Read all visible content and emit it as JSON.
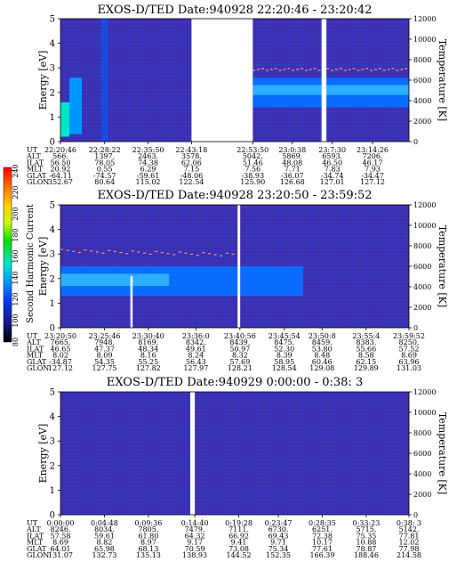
{
  "colorbar": {
    "label": "Second Harmonic Current",
    "ticks": [
      "240",
      "220",
      "200",
      "180",
      "160",
      "140",
      "120",
      "100",
      "80"
    ],
    "colors": [
      "#ff0000",
      "#ff7a00",
      "#ffd200",
      "#c8ff00",
      "#00e000",
      "#00e6c8",
      "#0096ff",
      "#003cff",
      "#1a1a8c",
      "#000000"
    ]
  },
  "chart_data": [
    {
      "type": "heatmap",
      "title": "EXOS-D/TED   Date:940928  22:20:46 - 23:20:42",
      "ylabel": "Energy [eV]",
      "y2label": "Temperature [K]",
      "yticks": [
        "0",
        "1",
        "2",
        "3",
        "4",
        "5"
      ],
      "y2ticks": [
        "0",
        "2000",
        "4000",
        "6000",
        "8000",
        "10000",
        "12000"
      ],
      "ylim": [
        0,
        5
      ],
      "y2lim": [
        0,
        12000
      ],
      "gaps_ut": [
        [
          "22:43:18",
          "22:53:50"
        ],
        [
          "23:05:40",
          "23:06:30"
        ]
      ],
      "temperature_trace": [
        [
          "22:53:50",
          7000
        ],
        [
          "23:20:42",
          7000
        ]
      ],
      "rows": [
        {
          "label": "UT",
          "values": [
            "22:20:46",
            "22:28:22",
            "22:35:50",
            "22:43:18",
            "22:53:50",
            "23:0:38",
            "23:7:30",
            "23:14:26"
          ]
        },
        {
          "label": "ALT",
          "values": [
            "566.",
            "1397.",
            "2463.",
            "3578.",
            "5042.",
            "5869.",
            "6593.",
            "7206."
          ]
        },
        {
          "label": "ILAT",
          "values": [
            "56.50",
            "78.05",
            "74.38",
            "62.06",
            "51.46",
            "48.08",
            "46.50",
            "46.17"
          ]
        },
        {
          "label": "MLT",
          "values": [
            "20.92",
            "0.55",
            "6.29",
            "7.15",
            "7.56",
            "7.71",
            "7.83",
            "7.93"
          ]
        },
        {
          "label": "GLAT",
          "values": [
            "-64.11",
            "-74.57",
            "-59.61",
            "-48.06",
            "-38.93",
            "-36.07",
            "-34.74",
            "-34.47"
          ]
        },
        {
          "label": "GLON",
          "values": [
            "352.67",
            "80.64",
            "115.02",
            "122.54",
            "125.90",
            "126.68",
            "127.01",
            "127.12"
          ]
        }
      ]
    },
    {
      "type": "heatmap",
      "title": "EXOS-D/TED   Date:940928  23:20:50 - 23:59:52",
      "ylabel": "Energy [eV]",
      "y2label": "Temperature [K]",
      "yticks": [
        "0",
        "1",
        "2",
        "3",
        "4",
        "5"
      ],
      "y2ticks": [
        "0",
        "2000",
        "4000",
        "6000",
        "8000",
        "10000",
        "12000"
      ],
      "ylim": [
        0,
        5
      ],
      "y2lim": [
        0,
        12000
      ],
      "gaps_ut": [
        [
          "23:40:40",
          "23:40:56"
        ]
      ],
      "rows": [
        {
          "label": "UT",
          "values": [
            "23:20:50",
            "23:25:46",
            "23:30:40",
            "23:36:0",
            "23:40:56",
            "23:45:54",
            "23:50:8",
            "23:55:4",
            "23:59:52"
          ]
        },
        {
          "label": "ALT",
          "values": [
            "7665.",
            "7948.",
            "8169.",
            "8342.",
            "8439.",
            "8475.",
            "8459.",
            "8383.",
            "8250."
          ]
        },
        {
          "label": "ILAT",
          "values": [
            "46.65",
            "47.37",
            "48.34",
            "49.61",
            "50.97",
            "52.30",
            "53.80",
            "55.66",
            "57.52"
          ]
        },
        {
          "label": "MLT",
          "values": [
            "8.02",
            "8.09",
            "8.16",
            "8.24",
            "8.32",
            "8.39",
            "8.48",
            "8.58",
            "8.69"
          ]
        },
        {
          "label": "GLAT",
          "values": [
            "-34.87",
            "54.35",
            "55.25",
            "56.43",
            "57.69",
            "58.95",
            "60.46",
            "62.15",
            "63.96"
          ]
        },
        {
          "label": "GLON",
          "values": [
            "127.12",
            "127.75",
            "127.82",
            "127.97",
            "128.21",
            "128.54",
            "129.08",
            "129.89",
            "131.03"
          ]
        }
      ]
    },
    {
      "type": "heatmap",
      "title": "EXOS-D/TED   Date:940929  0:00:00 - 0:38: 3",
      "ylabel": "Energy [eV]",
      "y2label": "Temperature [K]",
      "yticks": [
        "0",
        "1",
        "2",
        "3",
        "4",
        "5"
      ],
      "y2ticks": [
        "0",
        "2000",
        "4000",
        "6000",
        "8000",
        "10000",
        "12000"
      ],
      "ylim": [
        0,
        5
      ],
      "y2lim": [
        0,
        12000
      ],
      "gaps_ut": [
        [
          "0:14:10",
          "0:14:40"
        ]
      ],
      "rows": [
        {
          "label": "UT",
          "values": [
            "0:00:00",
            "0:04:48",
            "0:09:36",
            "0:14:40",
            "0:19:28",
            "0:23:47",
            "0:28:35",
            "0:33:23",
            "0:38: 3"
          ]
        },
        {
          "label": "ALT",
          "values": [
            "8246.",
            "8034.",
            "7805.",
            "7479.",
            "7111.",
            "6730.",
            "6251.",
            "5715.",
            "5142."
          ]
        },
        {
          "label": "ILAT",
          "values": [
            "57.58",
            "59.61",
            "61.80",
            "64.32",
            "66.92",
            "69.43",
            "72.38",
            "75.35",
            "77.81"
          ]
        },
        {
          "label": "MLT",
          "values": [
            "8.69",
            "8.82",
            "8.97",
            "9.17",
            "9.41",
            "9.71",
            "10.17",
            "10.88",
            "12.02"
          ]
        },
        {
          "label": "GLAT",
          "values": [
            "64.01",
            "65.98",
            "68.13",
            "70.59",
            "73.08",
            "75.34",
            "77.61",
            "78.87",
            "77.98"
          ]
        },
        {
          "label": "GLON",
          "values": [
            "131.07",
            "132.73",
            "135.13",
            "138.93",
            "144.52",
            "152.35",
            "166.39",
            "188.46",
            "214.58"
          ]
        }
      ]
    }
  ]
}
